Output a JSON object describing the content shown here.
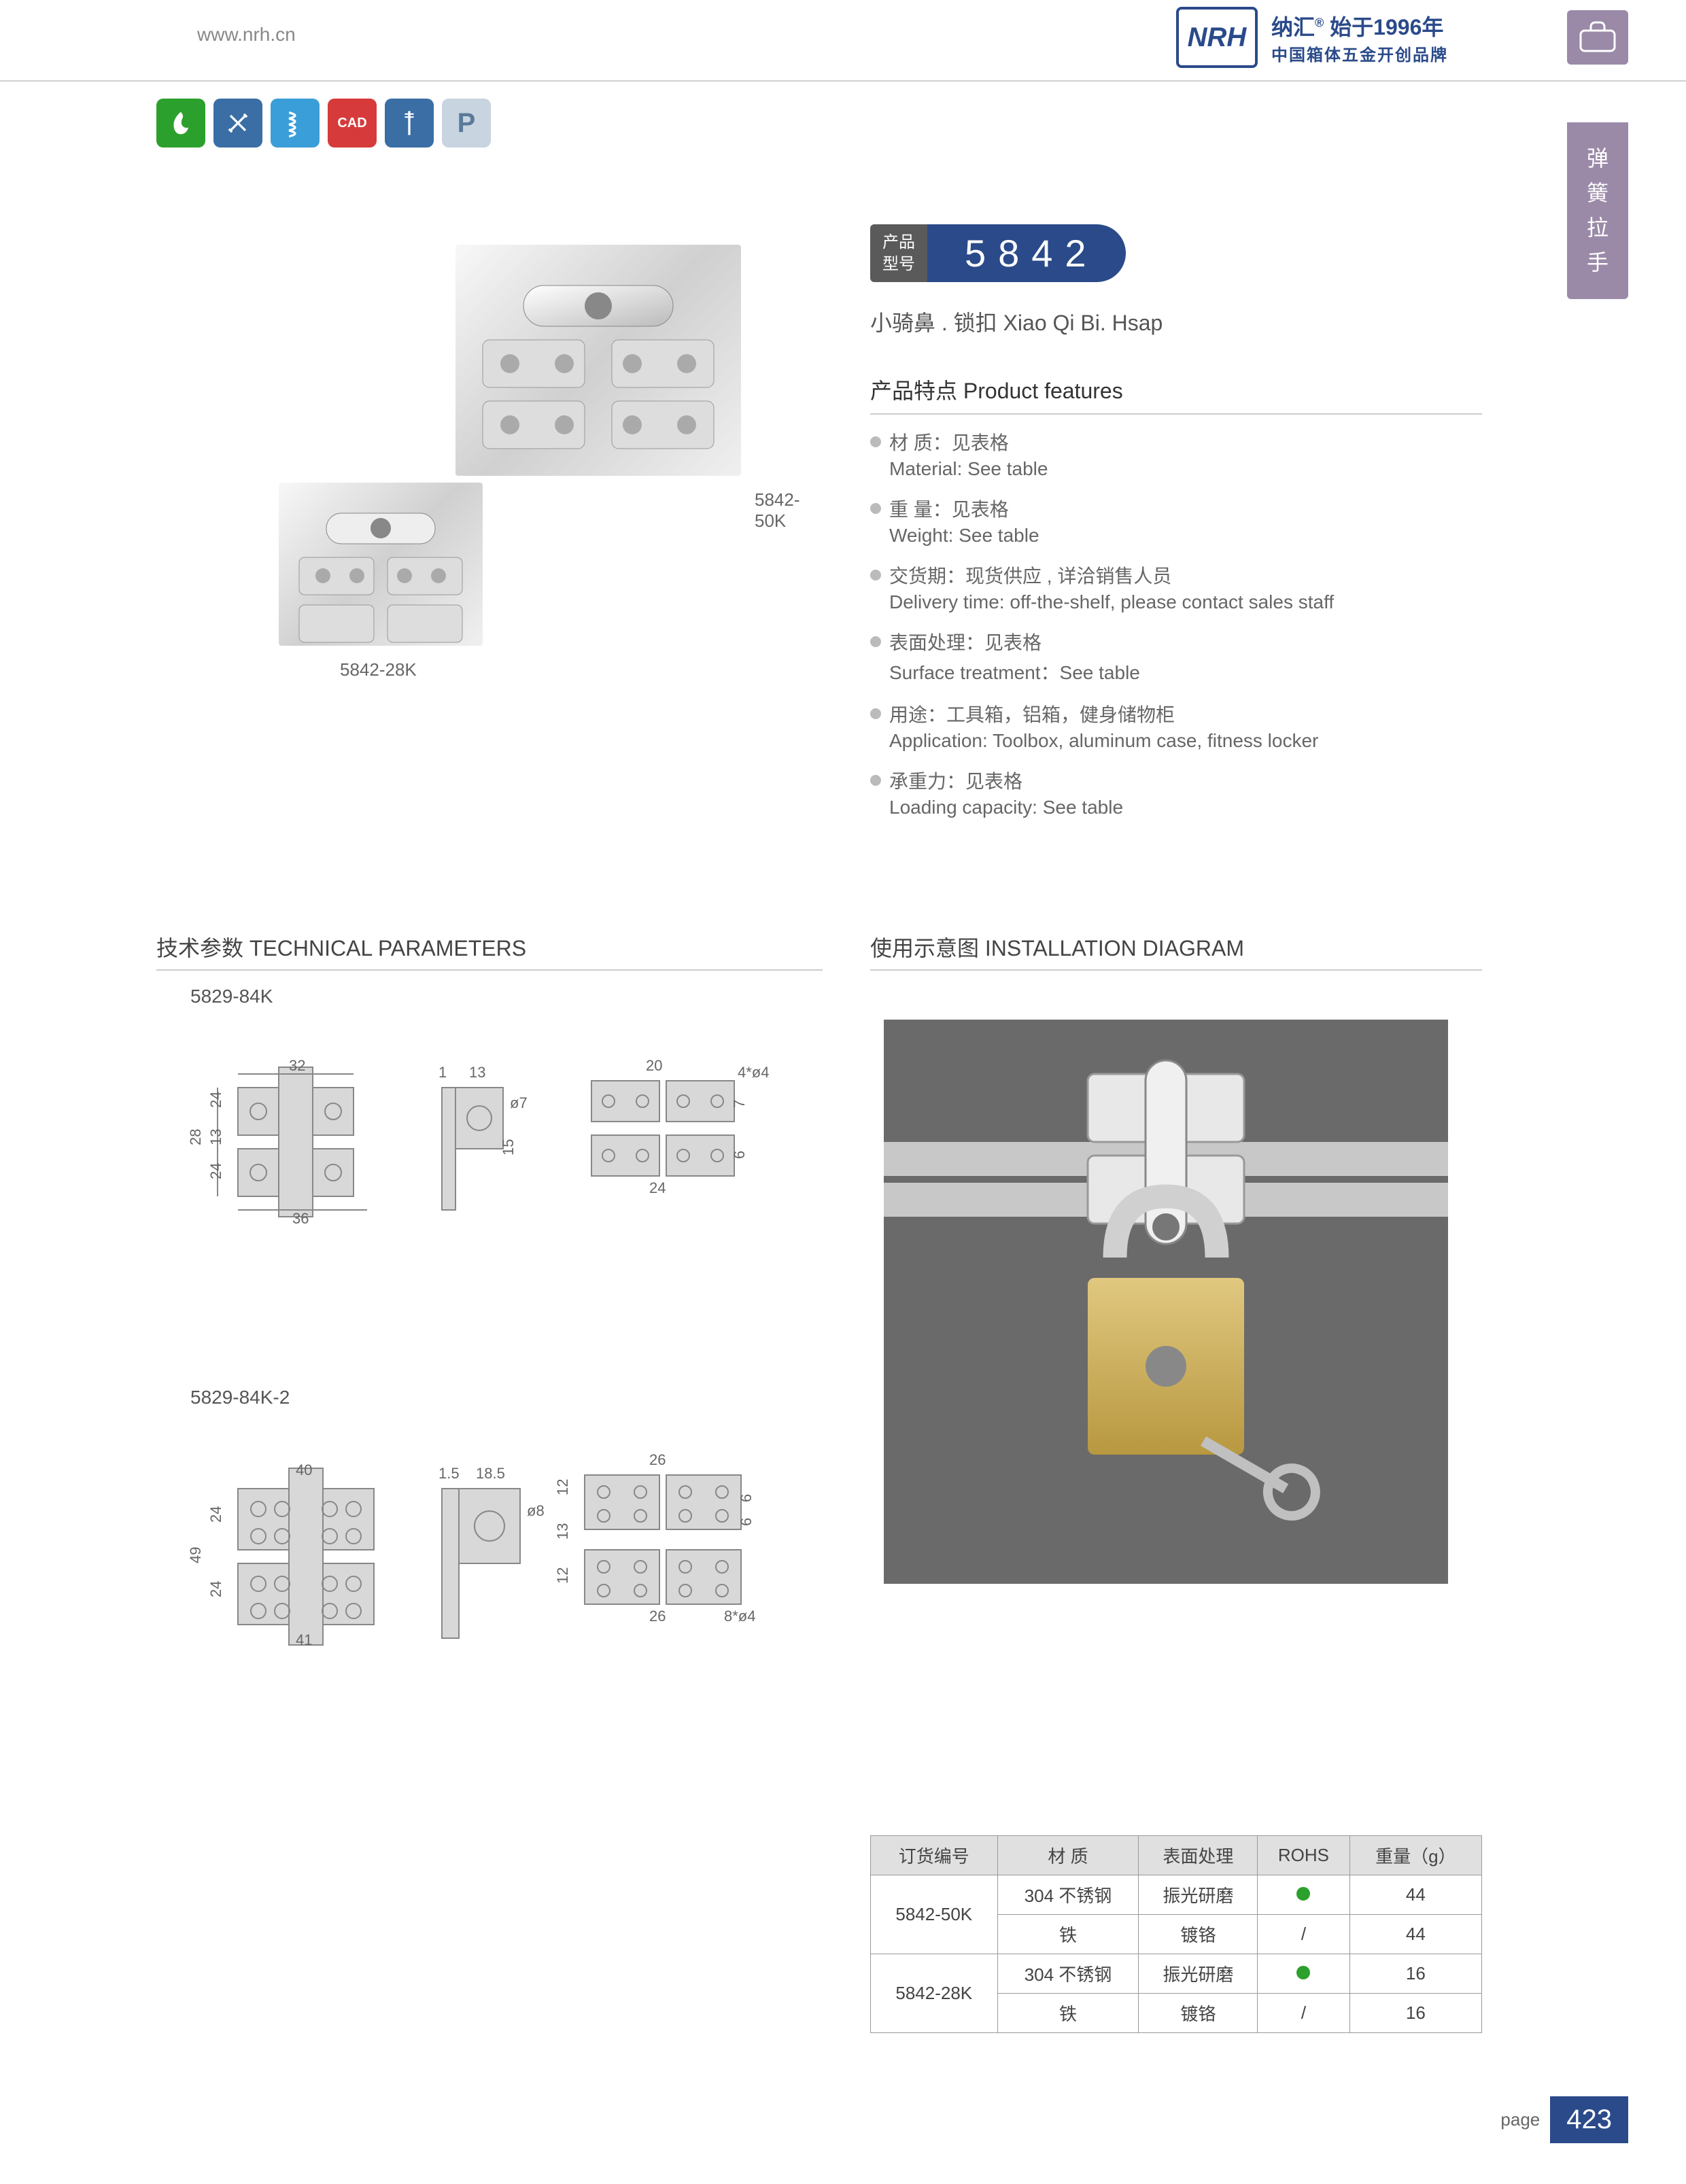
{
  "header": {
    "url": "www.nrh.cn",
    "logo_initials": "NRH",
    "logo_line1_cn": "纳汇",
    "logo_line1_tail": "始于1996年",
    "logo_line2": "中国箱体五金开创品牌"
  },
  "side_tab": "弹簧拉手",
  "icon_colors": [
    "#2ca02c",
    "#3a6ea5",
    "#3a9ed8",
    "#d63a3a",
    "#3a6ea5",
    "#8aa8c8"
  ],
  "icon_letters": [
    "",
    "",
    "",
    "CAD",
    "",
    "P"
  ],
  "product": {
    "label_large": "5842-50K",
    "label_small": "5842-28K",
    "model_label_l1": "产品",
    "model_label_l2": "型号",
    "model_number": "5842",
    "subtitle": "小骑鼻 . 锁扣   Xiao Qi Bi. Hsap"
  },
  "features_title": "产品特点 Product features",
  "features": [
    {
      "cn": "材 质：见表格",
      "en": "Material: See table"
    },
    {
      "cn": "重 量：见表格",
      "en": "Weight: See table"
    },
    {
      "cn": "交货期：现货供应 , 详洽销售人员",
      "en": "Delivery time: off-the-shelf, please contact sales staff"
    },
    {
      "cn": "表面处理：见表格",
      "en": "Surface treatment：See table"
    },
    {
      "cn": "用途：工具箱，铝箱，健身储物柜",
      "en": "Application: Toolbox, aluminum case, fitness locker"
    },
    {
      "cn": "承重力：见表格",
      "en": "Loading capacity: See table"
    }
  ],
  "tech_title": "技术参数   TECHNICAL PARAMETERS",
  "install_title": "使用示意图   INSTALLATION DIAGRAM",
  "tech_sub1": "5829-84K",
  "tech_sub2": "5829-84K-2",
  "dims1": {
    "w_top": "32",
    "h_total": "28",
    "h_seg_a": "24",
    "h_seg_b": "13",
    "h_seg_c": "24",
    "w_bottom": "36",
    "side_t": "1",
    "side_w": "13",
    "side_hole": "ø7",
    "side_h": "15",
    "open_w": "20",
    "open_holes": "4*ø4",
    "open_h1": "7",
    "open_h2": "6",
    "open_bottom": "24"
  },
  "dims2": {
    "w_top": "40",
    "h_total": "49",
    "h_seg": "24",
    "w_bottom": "41",
    "side_t": "1.5",
    "side_w": "18.5",
    "side_hole": "ø8",
    "open_w": "26",
    "open_holes": "8*ø4",
    "open_h1": "12",
    "open_h2": "13",
    "open_h3": "12",
    "open_h4": "6",
    "open_h5": "6",
    "open_bottom": "26"
  },
  "table": {
    "headers": [
      "订货编号",
      "材   质",
      "表面处理",
      "ROHS",
      "重量（g）"
    ],
    "rows": [
      {
        "code": "5842-50K",
        "mat": "304 不锈钢",
        "surf": "振光研磨",
        "rohs": "dot",
        "weight": "44",
        "rowspan": true
      },
      {
        "code": "",
        "mat": "铁",
        "surf": "镀铬",
        "rohs": "/",
        "weight": "44"
      },
      {
        "code": "5842-28K",
        "mat": "304 不锈钢",
        "surf": "振光研磨",
        "rohs": "dot",
        "weight": "16",
        "rowspan": true
      },
      {
        "code": "",
        "mat": "铁",
        "surf": "镀铬",
        "rohs": "/",
        "weight": "16"
      }
    ]
  },
  "footer": {
    "label": "page",
    "number": "423"
  },
  "colors": {
    "brand_blue": "#2a4a8a",
    "side_purple": "#9a8aa8",
    "dim_blue": "#5a8ac8",
    "rohs_green": "#2ca02c"
  }
}
